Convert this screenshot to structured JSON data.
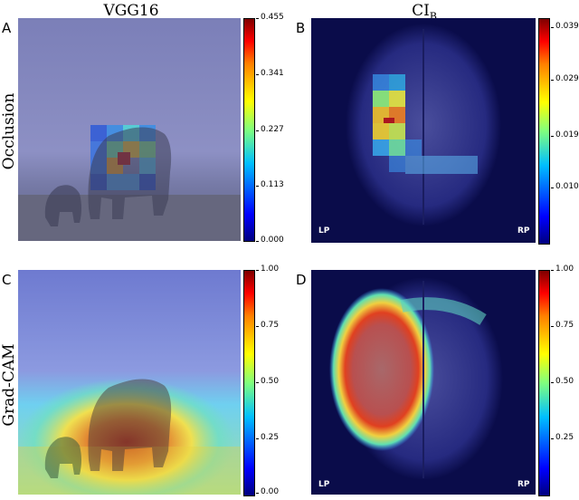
{
  "columns": {
    "left_title": "VGG16",
    "right_title_main": "CI",
    "right_title_sub": "B"
  },
  "rows": {
    "top_label": "Occlusion",
    "bottom_label": "Grad-CAM"
  },
  "panels": {
    "a": {
      "letter": "A",
      "ticks": [
        "0.455",
        "0.341",
        "0.227",
        "0.113",
        "0.000"
      ]
    },
    "b": {
      "letter": "B",
      "ticks": [
        "0.039",
        "0.029",
        "0.019",
        "0.010"
      ],
      "left_side": "LP",
      "right_side": "RP"
    },
    "c": {
      "letter": "C",
      "ticks": [
        "1.00",
        "0.75",
        "0.50",
        "0.25",
        "0.00"
      ]
    },
    "d": {
      "letter": "D",
      "ticks": [
        "1.00",
        "0.75",
        "0.50",
        "0.25"
      ],
      "left_side": "LP",
      "right_side": "RP"
    }
  },
  "colormap": "jet"
}
